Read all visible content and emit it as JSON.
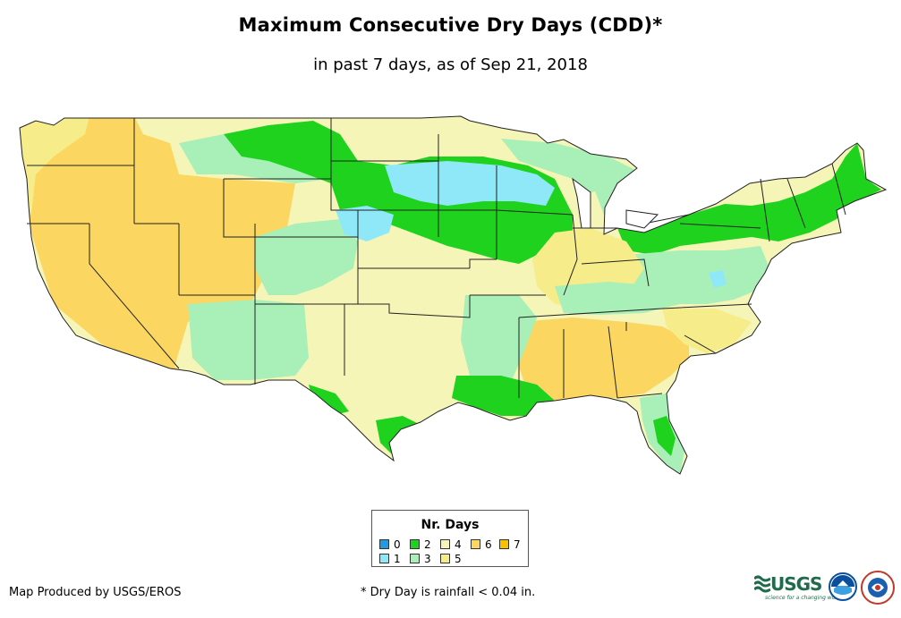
{
  "title": "Maximum Consecutive Dry Days (CDD)*",
  "subtitle": "in past 7 days, as of Sep 21, 2018",
  "legend": {
    "title": "Nr. Days",
    "items": [
      {
        "label": "0",
        "color": "#1e9be6"
      },
      {
        "label": "1",
        "color": "#8fe8f7"
      },
      {
        "label": "2",
        "color": "#1ed21e"
      },
      {
        "label": "3",
        "color": "#a8f0b8"
      },
      {
        "label": "4",
        "color": "#f5f5b8"
      },
      {
        "label": "5",
        "color": "#f7ec8a"
      },
      {
        "label": "6",
        "color": "#fbd660"
      },
      {
        "label": "7",
        "color": "#f9c200"
      }
    ]
  },
  "credit": "Map Produced by USGS/EROS",
  "footnote": "* Dry Day is rainfall < 0.04 in.",
  "logos": {
    "usgs": "USGS",
    "usgs_tagline": "science for a changing world"
  },
  "colors": {
    "state_border": "#222222",
    "background": "#ffffff"
  }
}
